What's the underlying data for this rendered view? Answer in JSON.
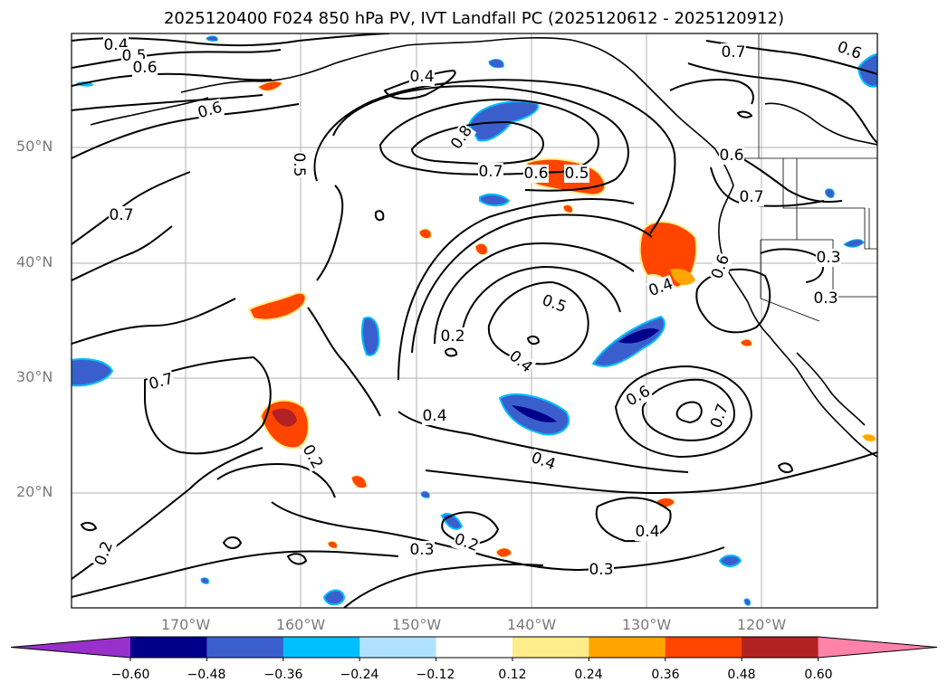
{
  "title": "2025120400 F024 850 hPa PV, IVT Landfall PC (2025120612 - 2025120912)",
  "lat_labels": [
    "50°N",
    "40°N",
    "30°N",
    "20°N"
  ],
  "lon_labels": [
    "170°W",
    "160°W",
    "150°W",
    "140°W",
    "130°W",
    "120°W"
  ],
  "colorbar": {
    "ticks": [
      "−0.60",
      "−0.48",
      "−0.36",
      "−0.24",
      "−0.12",
      "0.12",
      "0.24",
      "0.36",
      "0.48",
      "0.60"
    ],
    "colors": [
      "#9a30cc",
      "#00008b",
      "#3a5fcd",
      "#00bfff",
      "#b0e2ff",
      "#ffffff",
      "#ffec8b",
      "#ffa500",
      "#ff4500",
      "#b22222",
      "#ff82ab"
    ]
  },
  "contour_labels": [
    "0.4",
    "0.5",
    "0.6",
    "0.6",
    "0.5",
    "0.7",
    "0.4",
    "0.8",
    "0.7",
    "0.6",
    "0.5",
    "0.7",
    "0.6",
    "0.6",
    "0.7",
    "0.7",
    "0.6",
    "0.4",
    "0.5",
    "0.4",
    "0.3",
    "0.3",
    "0.2",
    "0.4",
    "0.6",
    "0.7",
    "0.4",
    "0.3",
    "0.2",
    "0.3",
    "0.2",
    "0.2",
    "0.4"
  ]
}
